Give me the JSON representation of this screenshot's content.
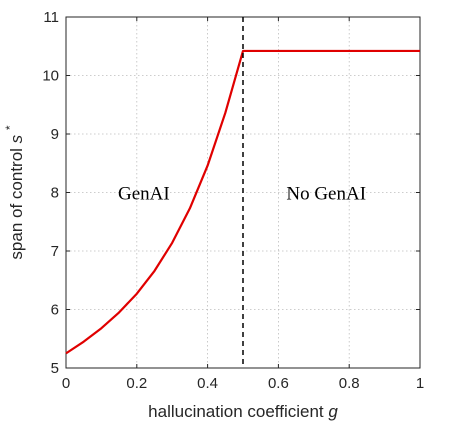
{
  "chart_data": {
    "type": "line",
    "xlabel": "hallucination coefficient",
    "xlabel_var": "g",
    "ylabel": "span of control",
    "ylabel_var": "s",
    "ylabel_sup": "*",
    "xlim": [
      0,
      1
    ],
    "ylim": [
      5,
      11
    ],
    "xticks": [
      0,
      0.2,
      0.4,
      0.6,
      0.8,
      1
    ],
    "xtick_labels": [
      "0",
      "0.2",
      "0.4",
      "0.6",
      "0.8",
      "1"
    ],
    "yticks": [
      5,
      6,
      7,
      8,
      9,
      10,
      11
    ],
    "ytick_labels": [
      "5",
      "6",
      "7",
      "8",
      "9",
      "10",
      "11"
    ],
    "grid": true,
    "series": [
      {
        "color": "#e00000",
        "x": [
          0,
          0.05,
          0.1,
          0.15,
          0.2,
          0.25,
          0.3,
          0.35,
          0.4,
          0.45,
          0.5,
          0.6,
          0.7,
          0.8,
          0.9,
          1.0
        ],
        "y": [
          5.25,
          5.45,
          5.68,
          5.95,
          6.27,
          6.66,
          7.14,
          7.73,
          8.46,
          9.36,
          10.42,
          10.42,
          10.42,
          10.42,
          10.42,
          10.42
        ]
      }
    ],
    "threshold": {
      "x": 0.5,
      "style": "dashed",
      "color": "#000000"
    },
    "annotations": [
      {
        "text": "GenAI",
        "x": 0.22,
        "y": 8.0
      },
      {
        "text": "No GenAI",
        "x": 0.735,
        "y": 8.0
      }
    ]
  }
}
